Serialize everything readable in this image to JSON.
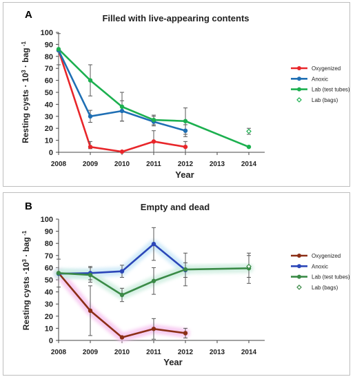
{
  "chart_data": [
    {
      "panel_letter": "A",
      "type": "line",
      "title": "Filled with live-appearing contents",
      "xlabel": "Year",
      "ylabel_main": "Resting cysts · 10",
      "ylabel_sup1": "3",
      "ylabel_mid": " · bag",
      "ylabel_sup2": " -1",
      "x_ticks": [
        "2008",
        "2009",
        "2010",
        "2011",
        "2012",
        "2013",
        "2014"
      ],
      "ylim": [
        0,
        100
      ],
      "y_ticks": [
        0,
        10,
        20,
        30,
        40,
        50,
        60,
        70,
        80,
        90,
        100
      ],
      "legend_position": "right",
      "series": [
        {
          "name": "Oxygenized",
          "color": "#e8262a",
          "marker": "circle",
          "glow": false,
          "points": [
            {
              "x": 2008,
              "y": 85
            },
            {
              "x": 2009,
              "y": 4.5,
              "err_lo": 3,
              "err_hi": 9
            },
            {
              "x": 2010,
              "y": 0.5
            },
            {
              "x": 2011,
              "y": 9,
              "err_lo": 0,
              "err_hi": 18
            },
            {
              "x": 2012,
              "y": 4.5,
              "err_lo": 0,
              "err_hi": 9
            }
          ]
        },
        {
          "name": "Anoxic",
          "color": "#1f6fb4",
          "marker": "circle",
          "glow": false,
          "points": [
            {
              "x": 2008,
              "y": 85
            },
            {
              "x": 2009,
              "y": 30,
              "err_lo": 25,
              "err_hi": 35
            },
            {
              "x": 2010,
              "y": 34.5,
              "err_lo": 26,
              "err_hi": 43
            },
            {
              "x": 2011,
              "y": 25.5,
              "err_lo": 22,
              "err_hi": 30
            },
            {
              "x": 2012,
              "y": 18,
              "err_lo": 13,
              "err_hi": 23
            }
          ]
        },
        {
          "name": "Lab (test tubes)",
          "color": "#1cb04f",
          "marker": "circle",
          "glow": false,
          "points": [
            {
              "x": 2008,
              "y": 86,
              "err_lo": 73,
              "err_hi": 99
            },
            {
              "x": 2009,
              "y": 60,
              "err_lo": 47,
              "err_hi": 73
            },
            {
              "x": 2010,
              "y": 38,
              "err_lo": 26,
              "err_hi": 50
            },
            {
              "x": 2011,
              "y": 27,
              "err_lo": 23,
              "err_hi": 31
            },
            {
              "x": 2012,
              "y": 26,
              "err_lo": 15,
              "err_hi": 37
            },
            {
              "x": 2014,
              "y": 4.5
            }
          ]
        },
        {
          "name": "Lab (bags)",
          "color": "#1cb04f",
          "marker": "diamond-open",
          "glow": false,
          "points": [
            {
              "x": 2014,
              "y": 17.5,
              "err_lo": 15,
              "err_hi": 20
            }
          ]
        }
      ]
    },
    {
      "panel_letter": "B",
      "type": "line",
      "title": "Empty and dead",
      "xlabel": "Year",
      "ylabel_main": "Resting cysts ·10",
      "ylabel_sup1": "3",
      "ylabel_mid": " · bag",
      "ylabel_sup2": " -1",
      "x_ticks": [
        "2008",
        "2009",
        "2010",
        "2011",
        "2012",
        "2013",
        "2014"
      ],
      "ylim": [
        0,
        100
      ],
      "y_ticks": [
        0,
        10,
        20,
        30,
        40,
        50,
        60,
        70,
        80,
        90,
        100
      ],
      "legend_position": "right",
      "series": [
        {
          "name": "Oxygenized",
          "color": "#8b2e16",
          "marker": "circle",
          "glow": true,
          "glow_color": "#f6c4ef",
          "points": [
            {
              "x": 2008,
              "y": 55.5,
              "err_lo": 44,
              "err_hi": 67
            },
            {
              "x": 2009,
              "y": 24.5,
              "err_lo": 4,
              "err_hi": 45
            },
            {
              "x": 2010,
              "y": 2.5
            },
            {
              "x": 2011,
              "y": 9.5,
              "err_lo": 1,
              "err_hi": 18
            },
            {
              "x": 2012,
              "y": 6,
              "err_lo": 2,
              "err_hi": 10
            }
          ]
        },
        {
          "name": "Anoxic",
          "color": "#2b46b8",
          "marker": "circle",
          "glow": true,
          "glow_color": "#cbe8f8",
          "points": [
            {
              "x": 2008,
              "y": 55
            },
            {
              "x": 2009,
              "y": 55.5,
              "err_lo": 50,
              "err_hi": 61
            },
            {
              "x": 2010,
              "y": 57,
              "err_lo": 52,
              "err_hi": 62
            },
            {
              "x": 2011,
              "y": 79.5,
              "err_lo": 66,
              "err_hi": 93
            },
            {
              "x": 2012,
              "y": 58,
              "err_lo": 52,
              "err_hi": 64
            }
          ]
        },
        {
          "name": "Lab (test tubes)",
          "color": "#3a8a46",
          "marker": "circle",
          "glow": true,
          "glow_color": "#cfeee0",
          "points": [
            {
              "x": 2008,
              "y": 55.5
            },
            {
              "x": 2009,
              "y": 54,
              "err_lo": 48,
              "err_hi": 60
            },
            {
              "x": 2010,
              "y": 37.5,
              "err_lo": 32,
              "err_hi": 43
            },
            {
              "x": 2011,
              "y": 49,
              "err_lo": 38,
              "err_hi": 60
            },
            {
              "x": 2012,
              "y": 58.5,
              "err_lo": 45,
              "err_hi": 72
            },
            {
              "x": 2014,
              "y": 59.5,
              "err_lo": 47,
              "err_hi": 72
            }
          ]
        },
        {
          "name": "Lab (bags)",
          "color": "#3a8a46",
          "marker": "diamond-open",
          "glow": false,
          "points": [
            {
              "x": 2014,
              "y": 61,
              "err_lo": 52,
              "err_hi": 70
            }
          ]
        }
      ]
    }
  ]
}
